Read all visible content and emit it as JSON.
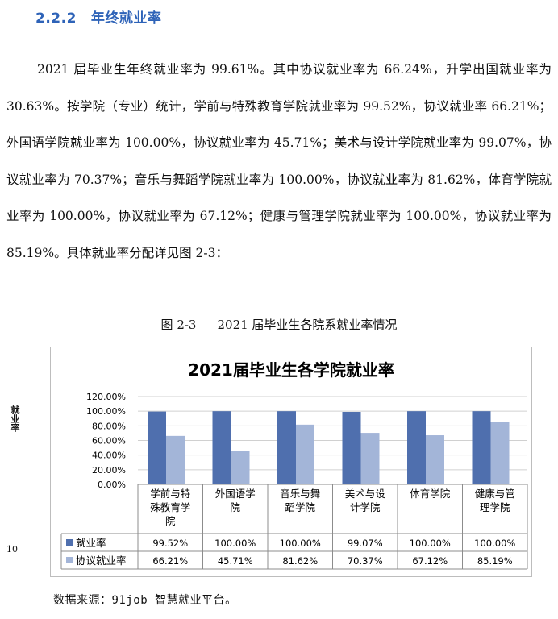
{
  "section": {
    "number": "2.2.2",
    "title": "年终就业率"
  },
  "paragraph": "2021 届毕业生年终就业率为 99.61%。其中协议就业率为 66.24%，升学出国就业率为 30.63%。按学院（专业）统计，学前与特殊教育学院就业率为 99.52%，协议就业率 66.21%；外国语学院就业率为 100.00%，协议就业率为 45.71%；美术与设计学院就业率为 99.07%，协议就业率为 70.37%；音乐与舞蹈学院就业率为 100.00%，协议就业率为 81.62%，体育学院就业率为 100.00%，协议就业率为 67.12%；健康与管理学院就业率为 100.00%，协议就业率为 85.19%。具体就业率分配详见图 2-3：",
  "figure_caption": {
    "number": "图 2-3",
    "text": "2021 届毕业生各院系就业率情况"
  },
  "page_number": "10",
  "source_note": "数据来源：91job 智慧就业平台。",
  "colors": {
    "series1": "#4f6fae",
    "series2": "#a3b5d8",
    "heading": "#2e63b8"
  },
  "chart_data": {
    "type": "bar",
    "title": "2021届毕业生各学院就业率",
    "ylabel": "就业率",
    "ylim": [
      0,
      120
    ],
    "yticks": [
      "0.00%",
      "20.00%",
      "40.00%",
      "60.00%",
      "80.00%",
      "100.00%",
      "120.00%"
    ],
    "categories": [
      [
        "学前与特",
        "殊教育学",
        "院"
      ],
      [
        "外国语学",
        "院"
      ],
      [
        "音乐与舞",
        "蹈学院"
      ],
      [
        "美术与设",
        "计学院"
      ],
      [
        "体育学院"
      ],
      [
        "健康与管",
        "理学院"
      ]
    ],
    "series": [
      {
        "name": "就业率",
        "values": [
          99.52,
          100.0,
          100.0,
          99.07,
          100.0,
          100.0
        ],
        "labels": [
          "99.52%",
          "100.00%",
          "100.00%",
          "99.07%",
          "100.00%",
          "100.00%"
        ]
      },
      {
        "name": "协议就业率",
        "values": [
          66.21,
          45.71,
          81.62,
          70.37,
          67.12,
          85.19
        ],
        "labels": [
          "66.21%",
          "45.71%",
          "81.62%",
          "70.37%",
          "67.12%",
          "85.19%"
        ]
      }
    ]
  }
}
